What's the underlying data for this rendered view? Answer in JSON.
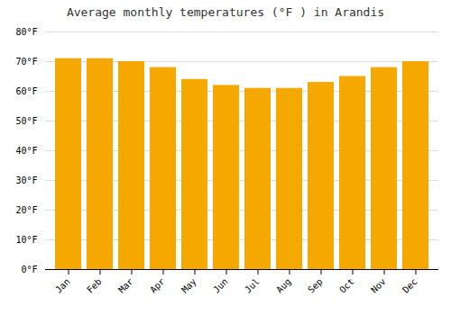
{
  "chart_data": {
    "type": "bar",
    "title": "Average monthly temperatures (°F ) in Arandis",
    "categories": [
      "Jan",
      "Feb",
      "Mar",
      "Apr",
      "May",
      "Jun",
      "Jul",
      "Aug",
      "Sep",
      "Oct",
      "Nov",
      "Dec"
    ],
    "values": [
      71,
      71,
      70,
      68,
      64,
      62,
      61,
      61,
      63,
      65,
      68,
      70
    ],
    "color": "#F5A800",
    "ylim": [
      0,
      80
    ],
    "yticks": [
      {
        "value": 0,
        "label": "0°F"
      },
      {
        "value": 10,
        "label": "10°F"
      },
      {
        "value": 20,
        "label": "20°F"
      },
      {
        "value": 30,
        "label": "30°F"
      },
      {
        "value": 40,
        "label": "40°F"
      },
      {
        "value": 50,
        "label": "50°F"
      },
      {
        "value": 60,
        "label": "60°F"
      },
      {
        "value": 70,
        "label": "70°F"
      },
      {
        "value": 80,
        "label": "80°F"
      }
    ],
    "grid": true
  }
}
